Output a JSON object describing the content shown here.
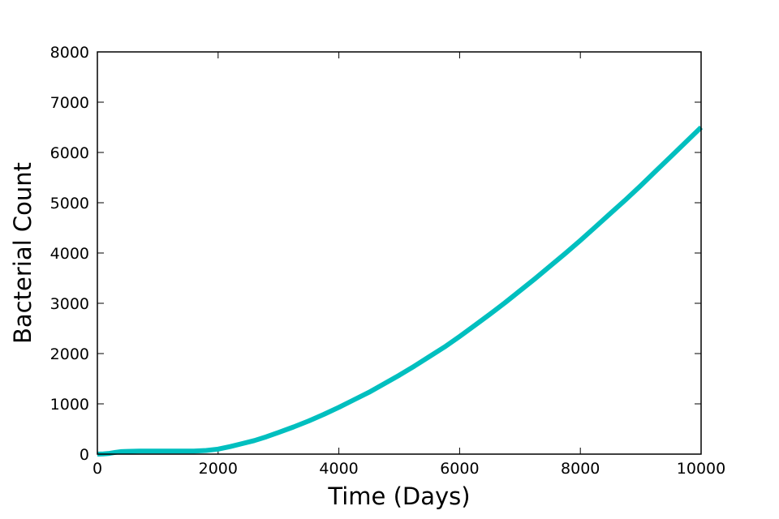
{
  "chart_data": {
    "type": "line",
    "title": "",
    "xlabel": "Time (Days)",
    "ylabel": "Bacterial Count",
    "xlim": [
      0,
      10000
    ],
    "ylim": [
      0,
      8000
    ],
    "xticks": [
      0,
      2000,
      4000,
      6000,
      8000,
      10000
    ],
    "yticks": [
      0,
      1000,
      2000,
      3000,
      4000,
      5000,
      6000,
      7000,
      8000
    ],
    "xtick_labels": [
      "0",
      "2000",
      "4000",
      "6000",
      "8000",
      "10000"
    ],
    "ytick_labels": [
      "0",
      "1000",
      "2000",
      "3000",
      "4000",
      "5000",
      "6000",
      "7000",
      "8000"
    ],
    "grid": false,
    "line_color": "#00bfbf",
    "series": [
      {
        "x": [
          0,
          100,
          200,
          300,
          400,
          500,
          700,
          1000,
          1300,
          1600,
          1800,
          2000,
          2200,
          2400,
          2600,
          2800,
          3000,
          3250,
          3500,
          3750,
          4000,
          4250,
          4500,
          4750,
          5000,
          5250,
          5500,
          5750,
          6000,
          6250,
          6500,
          6750,
          7000,
          7250,
          7500,
          7750,
          8000,
          8250,
          8500,
          8750,
          9000,
          9250,
          9500,
          9750,
          10000
        ],
        "y": [
          0,
          5,
          15,
          35,
          50,
          55,
          60,
          60,
          60,
          62,
          72,
          100,
          150,
          210,
          270,
          345,
          430,
          540,
          660,
          790,
          930,
          1080,
          1230,
          1400,
          1570,
          1750,
          1940,
          2130,
          2340,
          2560,
          2780,
          3010,
          3250,
          3490,
          3740,
          3990,
          4250,
          4520,
          4790,
          5060,
          5340,
          5630,
          5920,
          6210,
          6500
        ]
      }
    ]
  }
}
